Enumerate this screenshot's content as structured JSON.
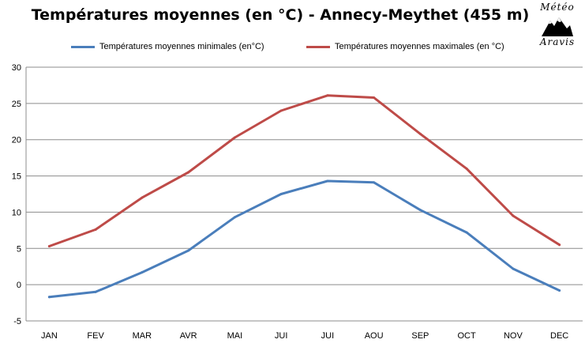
{
  "chart_data": {
    "type": "line",
    "title": "Températures moyennes (en °C) - Annecy-Meythet (455 m)",
    "xlabel": "",
    "ylabel": "",
    "ylim": [
      -5,
      30
    ],
    "yticks": [
      -5,
      0,
      5,
      10,
      15,
      20,
      25,
      30
    ],
    "grid": true,
    "legend_position": "top",
    "categories": [
      "JAN",
      "FEV",
      "MAR",
      "AVR",
      "MAI",
      "JUI",
      "JUI",
      "AOU",
      "SEP",
      "OCT",
      "NOV",
      "DEC"
    ],
    "series": [
      {
        "name": "Températures moyennes minimales (en°C)",
        "color": "#4a7ebb",
        "values": [
          -1.7,
          -1.0,
          1.7,
          4.7,
          9.3,
          12.5,
          14.3,
          14.1,
          10.3,
          7.2,
          2.2,
          -0.8
        ]
      },
      {
        "name": "Températures moyennes maximales (en °C)",
        "color": "#be4b48",
        "values": [
          5.3,
          7.6,
          12.0,
          15.5,
          20.3,
          24.0,
          26.1,
          25.8,
          20.8,
          16.0,
          9.5,
          5.5
        ]
      }
    ]
  },
  "logo": {
    "top_text": "Météo",
    "bottom_text": "Aravis"
  }
}
